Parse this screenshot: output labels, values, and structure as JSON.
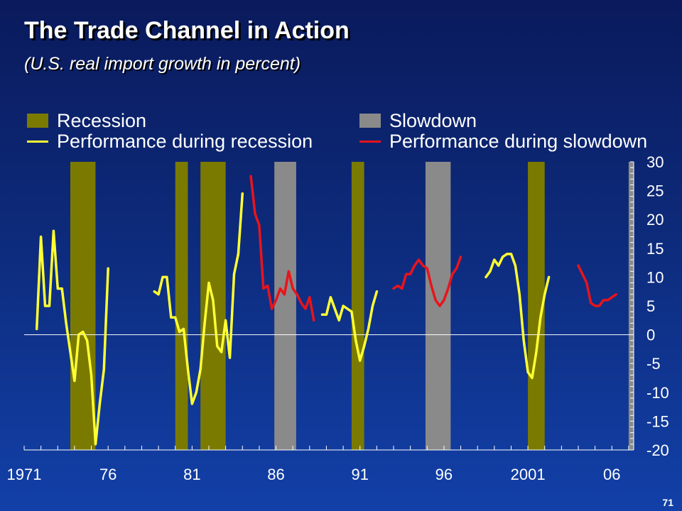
{
  "slide": {
    "title": "The Trade Channel in Action",
    "subtitle": "(U.S. real import growth in percent)",
    "page_number": "71"
  },
  "colors": {
    "recession": "#7b7a00",
    "slowdown": "#8a8a8a",
    "recession_line": "#ffff33",
    "slowdown_line": "#e8141c",
    "axis": "#ffffff"
  },
  "chart_data": {
    "type": "line",
    "title": "The Trade Channel in Action",
    "subtitle": "(U.S. real import growth in percent)",
    "xlabel": "",
    "ylabel": "",
    "xlim": [
      1971.0,
      2007.3
    ],
    "ylim": [
      -20,
      30
    ],
    "y_ticks": [
      30,
      25,
      20,
      15,
      10,
      5,
      0,
      -5,
      -10,
      -15,
      -20
    ],
    "y_tick_labels": [
      "30",
      "25",
      "20",
      "15",
      "10",
      "5",
      "0",
      "-5",
      "-10",
      "-15",
      "-20"
    ],
    "x_ticks": [
      1971,
      1976,
      1981,
      1986,
      1991,
      1996,
      2001,
      2006
    ],
    "x_tick_labels": [
      "1971",
      "76",
      "81",
      "86",
      "91",
      "96",
      "2001",
      "06"
    ],
    "grid": false,
    "legend_position": "top",
    "legend": [
      {
        "label": "Recession",
        "kind": "band",
        "color": "#7b7a00"
      },
      {
        "label": "Slowdown",
        "kind": "band",
        "color": "#8a8a8a"
      },
      {
        "label": "Performance during recession",
        "kind": "line",
        "color": "#ffff33"
      },
      {
        "label": "Performance during slowdown",
        "kind": "line",
        "color": "#e8141c"
      }
    ],
    "bands": [
      {
        "kind": "recession",
        "start": 1973.75,
        "end": 1975.25
      },
      {
        "kind": "recession",
        "start": 1980.0,
        "end": 1980.75
      },
      {
        "kind": "recession",
        "start": 1981.5,
        "end": 1983.0
      },
      {
        "kind": "slowdown",
        "start": 1985.9,
        "end": 1987.2
      },
      {
        "kind": "recession",
        "start": 1990.5,
        "end": 1991.25
      },
      {
        "kind": "slowdown",
        "start": 1994.9,
        "end": 1996.4
      },
      {
        "kind": "recession",
        "start": 2001.0,
        "end": 2002.0
      },
      {
        "kind": "slowdown",
        "start": 2007.0,
        "end": 2007.3
      }
    ],
    "series": [
      {
        "kind": "recession",
        "segment": 1,
        "x": [
          1971.75,
          1972.0,
          1972.25,
          1972.5,
          1972.75,
          1973.0,
          1973.25,
          1973.5,
          1973.75,
          1974.0,
          1974.25,
          1974.5,
          1974.75,
          1975.0,
          1975.25,
          1975.5,
          1975.75,
          1976.0
        ],
        "y": [
          1,
          17,
          5,
          5,
          18,
          8,
          8,
          2,
          -3,
          -8,
          0,
          0.5,
          -1,
          -7,
          -19,
          -12,
          -6,
          11.5
        ]
      },
      {
        "kind": "recession",
        "segment": 2,
        "x": [
          1978.75,
          1979.0,
          1979.25,
          1979.5,
          1979.75,
          1980.0,
          1980.25,
          1980.5,
          1980.75,
          1981.0,
          1981.25,
          1981.5,
          1981.75,
          1982.0,
          1982.25,
          1982.5,
          1982.75,
          1983.0,
          1983.25,
          1983.5,
          1983.75
        ],
        "y": [
          7.5,
          7,
          10,
          10,
          3,
          3,
          0.5,
          1,
          -6,
          -12,
          -10,
          -6,
          2,
          9,
          6,
          -2,
          -3,
          2.5,
          -4,
          10.5,
          14
        ]
      },
      {
        "kind": "recession",
        "segment": 3,
        "x": [
          1983.75,
          1984.0
        ],
        "y": [
          14,
          24.5
        ]
      },
      {
        "kind": "slowdown",
        "segment": 1,
        "x": [
          1984.5,
          1984.75,
          1985.0,
          1985.25,
          1985.5,
          1985.75,
          1986.0,
          1986.25,
          1986.5,
          1986.75,
          1987.0,
          1987.25,
          1987.5,
          1987.75,
          1988.0,
          1988.25
        ],
        "y": [
          27.5,
          21,
          19,
          8,
          8.5,
          4.5,
          6,
          8,
          7,
          11,
          8,
          7,
          5.5,
          4.5,
          6.5,
          2.5
        ]
      },
      {
        "kind": "recession",
        "segment": 4,
        "x": [
          1988.75,
          1989.0,
          1989.25,
          1989.5,
          1989.75,
          1990.0,
          1990.25,
          1990.5,
          1990.75,
          1991.0,
          1991.25,
          1991.5,
          1991.75,
          1992.0
        ],
        "y": [
          3.5,
          3.5,
          6.5,
          4.5,
          2.5,
          5,
          4.5,
          4,
          -1,
          -4.5,
          -2,
          1,
          5,
          7.5
        ]
      },
      {
        "kind": "slowdown",
        "segment": 2,
        "x": [
          1993.0,
          1993.25,
          1993.5,
          1993.75,
          1994.0,
          1994.25,
          1994.5,
          1994.75,
          1995.0,
          1995.25,
          1995.5,
          1995.75,
          1996.0,
          1996.25,
          1996.5,
          1996.75,
          1997.0
        ],
        "y": [
          8,
          8.5,
          8,
          10.5,
          10.5,
          12,
          13,
          12,
          11.5,
          8.5,
          6,
          5,
          6,
          8,
          10.5,
          11.5,
          13.5
        ]
      },
      {
        "kind": "recession",
        "segment": 5,
        "x": [
          1998.5,
          1998.75,
          1999.0,
          1999.25,
          1999.5,
          1999.75,
          2000.0,
          2000.25,
          2000.5,
          2000.75,
          2001.0,
          2001.25,
          2001.5,
          2001.75,
          2002.0,
          2002.25,
          2002.5,
          2002.75
        ],
        "y": [
          10,
          11,
          13,
          12,
          13.5,
          14,
          14,
          12,
          7,
          -1,
          -6.5,
          -7.5,
          -3,
          3,
          7,
          10,
          null,
          null
        ]
      },
      {
        "kind": "slowdown",
        "segment": 3,
        "x": [
          2004.0,
          2004.25,
          2004.5,
          2004.75,
          2005.0,
          2005.25,
          2005.5,
          2005.75,
          2006.0,
          2006.25,
          2006.5,
          2006.75,
          2007.0
        ],
        "y": [
          12,
          10.5,
          9,
          5.5,
          5,
          5,
          6,
          6,
          6.5,
          7,
          null,
          null,
          null
        ]
      }
    ]
  }
}
